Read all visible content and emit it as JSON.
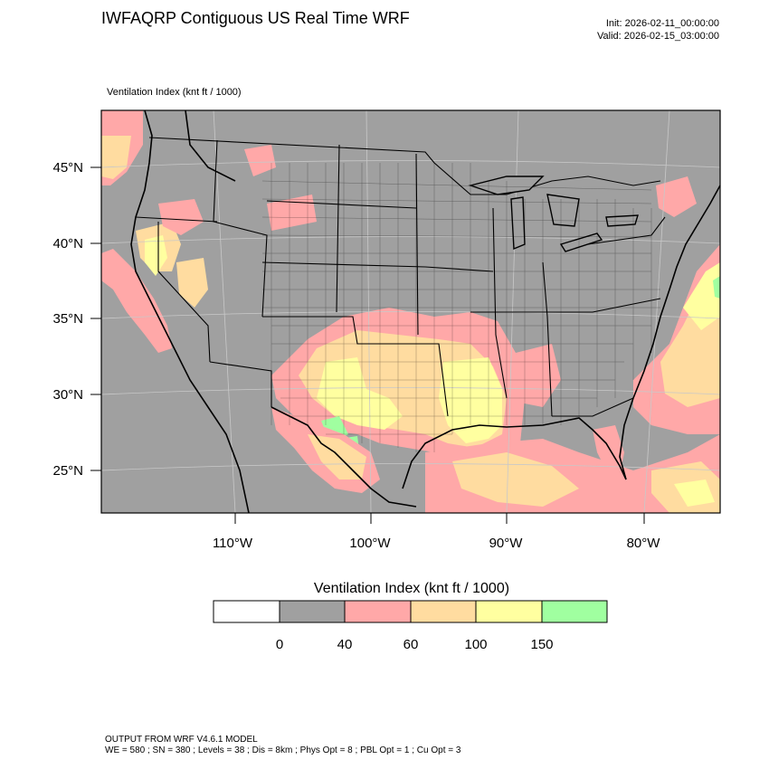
{
  "header": {
    "title": "IWFAQRP Contiguous US Real Time WRF",
    "init": "Init: 2026-02-11_00:00:00",
    "valid": "Valid: 2026-02-15_03:00:00"
  },
  "map": {
    "field_label": "Ventilation Index   (knt ft / 1000)",
    "lat_labels": [
      "45°N",
      "40°N",
      "35°N",
      "30°N",
      "25°N"
    ],
    "lon_labels": [
      "110°W",
      "100°W",
      "90°W",
      "80°W"
    ],
    "colors": {
      "background": "#a0a0a0",
      "border": "#000000",
      "grid": "#c8c8c8"
    }
  },
  "colorbar": {
    "title": "Ventilation Index  (knt ft / 1000)",
    "bins": [
      {
        "color": "#ffffff"
      },
      {
        "color": "#a0a0a0"
      },
      {
        "color": "#ffa8a8"
      },
      {
        "color": "#ffdca0"
      },
      {
        "color": "#ffffa0"
      },
      {
        "color": "#a0ffa0"
      }
    ],
    "ticks": [
      "0",
      "40",
      "60",
      "100",
      "150"
    ]
  },
  "footer": {
    "line1": "OUTPUT FROM WRF V4.6.1 MODEL",
    "line2": "WE = 580 ; SN = 380 ; Levels = 38 ; Dis = 8km ; Phys Opt = 8 ; PBL Opt = 1 ; Cu Opt = 3"
  }
}
